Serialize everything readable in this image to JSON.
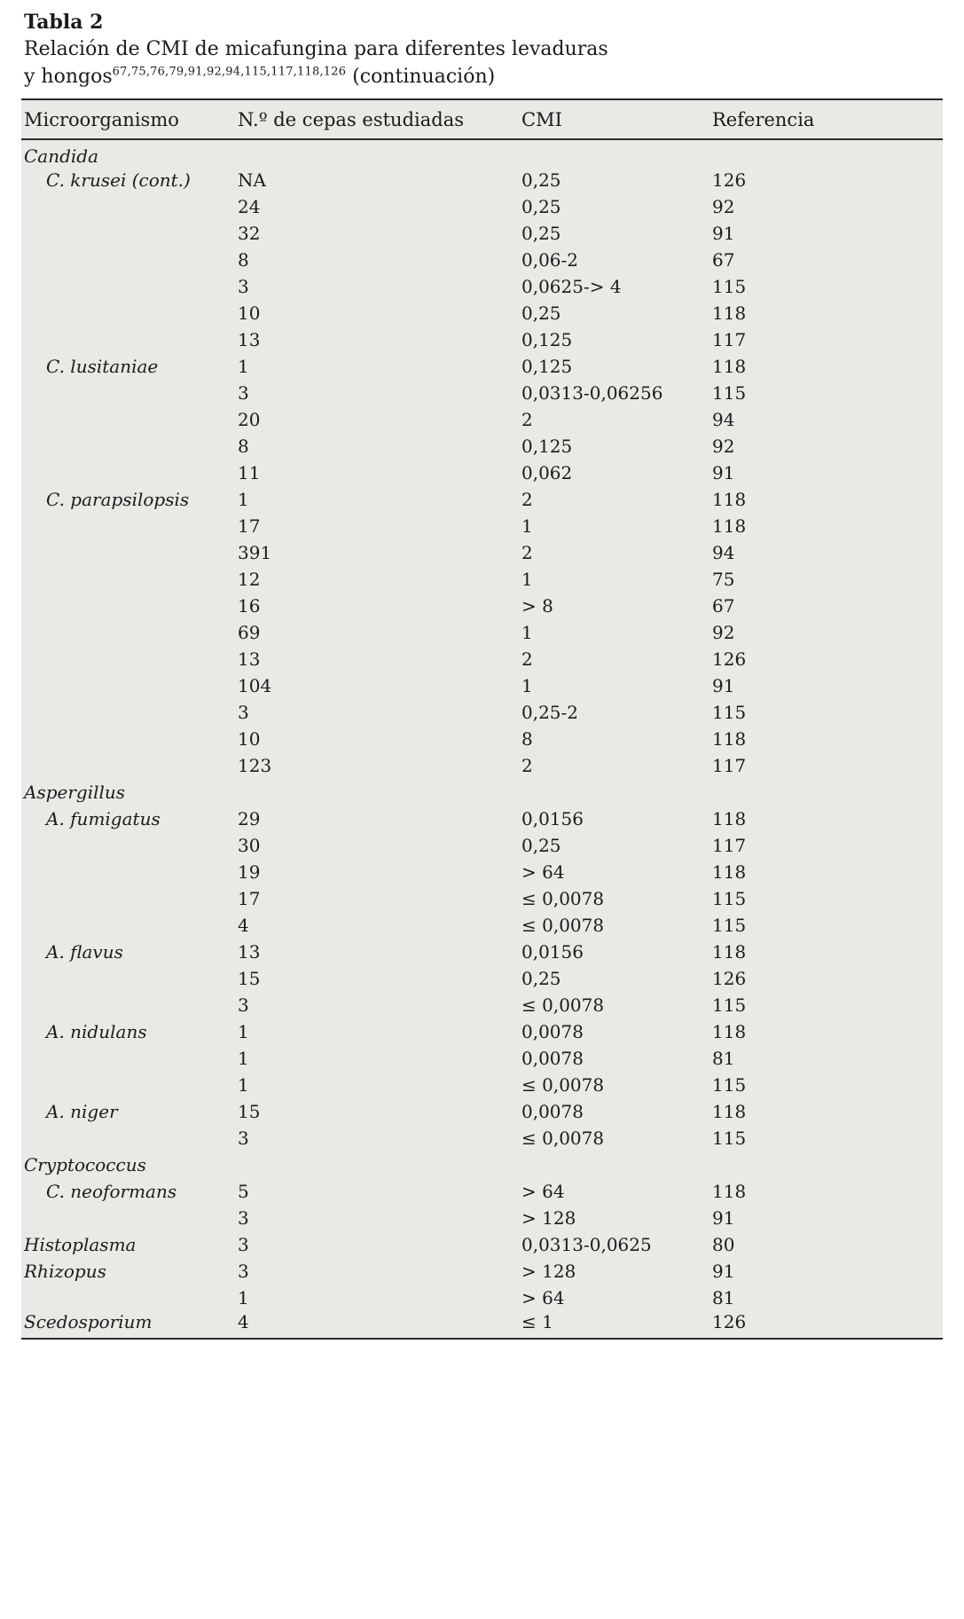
{
  "table": {
    "label": "Tabla 2",
    "caption_line1": "Relación de CMI de micafungina para diferentes levaduras",
    "caption_line2_prefix": "y hongos",
    "caption_refs": "67,75,76,79,91,92,94,115,117,118,126",
    "caption_line2_suffix": " (continuación)",
    "columns": [
      "Microorganismo",
      "N.º de cepas estudiadas",
      "CMI",
      "Referencia"
    ],
    "rows": [
      {
        "group": true,
        "indent": false,
        "name": "Candida",
        "cepas": "",
        "cmi": "",
        "ref": ""
      },
      {
        "group": false,
        "indent": true,
        "name": "C. krusei (cont.)",
        "cepas": "NA",
        "cmi": "0,25",
        "ref": "126"
      },
      {
        "group": false,
        "indent": true,
        "name": "",
        "cepas": "24",
        "cmi": "0,25",
        "ref": "92"
      },
      {
        "group": false,
        "indent": true,
        "name": "",
        "cepas": "32",
        "cmi": "0,25",
        "ref": "91"
      },
      {
        "group": false,
        "indent": true,
        "name": "",
        "cepas": "8",
        "cmi": "0,06-2",
        "ref": "67"
      },
      {
        "group": false,
        "indent": true,
        "name": "",
        "cepas": "3",
        "cmi": "0,0625-> 4",
        "ref": "115"
      },
      {
        "group": false,
        "indent": true,
        "name": "",
        "cepas": "10",
        "cmi": "0,25",
        "ref": "118"
      },
      {
        "group": false,
        "indent": true,
        "name": "",
        "cepas": "13",
        "cmi": "0,125",
        "ref": "117"
      },
      {
        "group": false,
        "indent": true,
        "name": "C. lusitaniae",
        "cepas": "1",
        "cmi": "0,125",
        "ref": "118"
      },
      {
        "group": false,
        "indent": true,
        "name": "",
        "cepas": "3",
        "cmi": "0,0313-0,06256",
        "ref": "115"
      },
      {
        "group": false,
        "indent": true,
        "name": "",
        "cepas": "20",
        "cmi": "2",
        "ref": "94"
      },
      {
        "group": false,
        "indent": true,
        "name": "",
        "cepas": "8",
        "cmi": "0,125",
        "ref": "92"
      },
      {
        "group": false,
        "indent": true,
        "name": "",
        "cepas": "11",
        "cmi": "0,062",
        "ref": "91"
      },
      {
        "group": false,
        "indent": true,
        "name": "C. parapsilopsis",
        "cepas": "1",
        "cmi": "2",
        "ref": "118"
      },
      {
        "group": false,
        "indent": true,
        "name": "",
        "cepas": "17",
        "cmi": "1",
        "ref": "118"
      },
      {
        "group": false,
        "indent": true,
        "name": "",
        "cepas": "391",
        "cmi": "2",
        "ref": "94"
      },
      {
        "group": false,
        "indent": true,
        "name": "",
        "cepas": "12",
        "cmi": "1",
        "ref": "75"
      },
      {
        "group": false,
        "indent": true,
        "name": "",
        "cepas": "16",
        "cmi": "> 8",
        "ref": "67"
      },
      {
        "group": false,
        "indent": true,
        "name": "",
        "cepas": "69",
        "cmi": "1",
        "ref": "92"
      },
      {
        "group": false,
        "indent": true,
        "name": "",
        "cepas": "13",
        "cmi": "2",
        "ref": "126"
      },
      {
        "group": false,
        "indent": true,
        "name": "",
        "cepas": "104",
        "cmi": "1",
        "ref": "91"
      },
      {
        "group": false,
        "indent": true,
        "name": "",
        "cepas": "3",
        "cmi": "0,25-2",
        "ref": "115"
      },
      {
        "group": false,
        "indent": true,
        "name": "",
        "cepas": "10",
        "cmi": "8",
        "ref": "118"
      },
      {
        "group": false,
        "indent": true,
        "name": "",
        "cepas": "123",
        "cmi": "2",
        "ref": "117"
      },
      {
        "group": true,
        "indent": false,
        "name": "Aspergillus",
        "cepas": "",
        "cmi": "",
        "ref": ""
      },
      {
        "group": false,
        "indent": true,
        "name": "A. fumigatus",
        "cepas": "29",
        "cmi": "0,0156",
        "ref": "118"
      },
      {
        "group": false,
        "indent": true,
        "name": "",
        "cepas": "30",
        "cmi": "0,25",
        "ref": "117"
      },
      {
        "group": false,
        "indent": true,
        "name": "",
        "cepas": "19",
        "cmi": "> 64",
        "ref": "118"
      },
      {
        "group": false,
        "indent": true,
        "name": "",
        "cepas": "17",
        "cmi": "≤ 0,0078",
        "ref": "115"
      },
      {
        "group": false,
        "indent": true,
        "name": "",
        "cepas": "4",
        "cmi": "≤ 0,0078",
        "ref": "115"
      },
      {
        "group": false,
        "indent": true,
        "name": "A. flavus",
        "cepas": "13",
        "cmi": "0,0156",
        "ref": "118"
      },
      {
        "group": false,
        "indent": true,
        "name": "",
        "cepas": "15",
        "cmi": "0,25",
        "ref": "126"
      },
      {
        "group": false,
        "indent": true,
        "name": "",
        "cepas": "3",
        "cmi": "≤ 0,0078",
        "ref": "115"
      },
      {
        "group": false,
        "indent": true,
        "name": "A. nidulans",
        "cepas": "1",
        "cmi": "0,0078",
        "ref": "118"
      },
      {
        "group": false,
        "indent": true,
        "name": "",
        "cepas": "1",
        "cmi": "0,0078",
        "ref": "81"
      },
      {
        "group": false,
        "indent": true,
        "name": "",
        "cepas": "1",
        "cmi": "≤ 0,0078",
        "ref": "115"
      },
      {
        "group": false,
        "indent": true,
        "name": "A. niger",
        "cepas": "15",
        "cmi": "0,0078",
        "ref": "118"
      },
      {
        "group": false,
        "indent": true,
        "name": "",
        "cepas": "3",
        "cmi": "≤ 0,0078",
        "ref": "115"
      },
      {
        "group": true,
        "indent": false,
        "name": "Cryptococcus",
        "cepas": "",
        "cmi": "",
        "ref": ""
      },
      {
        "group": false,
        "indent": true,
        "name": "C. neoformans",
        "cepas": "5",
        "cmi": "> 64",
        "ref": "118"
      },
      {
        "group": false,
        "indent": true,
        "name": "",
        "cepas": "3",
        "cmi": "> 128",
        "ref": "91"
      },
      {
        "group": false,
        "indent": false,
        "name": "Histoplasma",
        "cepas": "3",
        "cmi": "0,0313-0,0625",
        "ref": "80"
      },
      {
        "group": false,
        "indent": false,
        "name": "Rhizopus",
        "cepas": "3",
        "cmi": "> 128",
        "ref": "91"
      },
      {
        "group": false,
        "indent": false,
        "name": "",
        "cepas": "1",
        "cmi": "> 64",
        "ref": "81"
      },
      {
        "group": false,
        "indent": false,
        "name": "Scedosporium",
        "cepas": "4",
        "cmi": "≤ 1",
        "ref": "126"
      }
    ]
  }
}
